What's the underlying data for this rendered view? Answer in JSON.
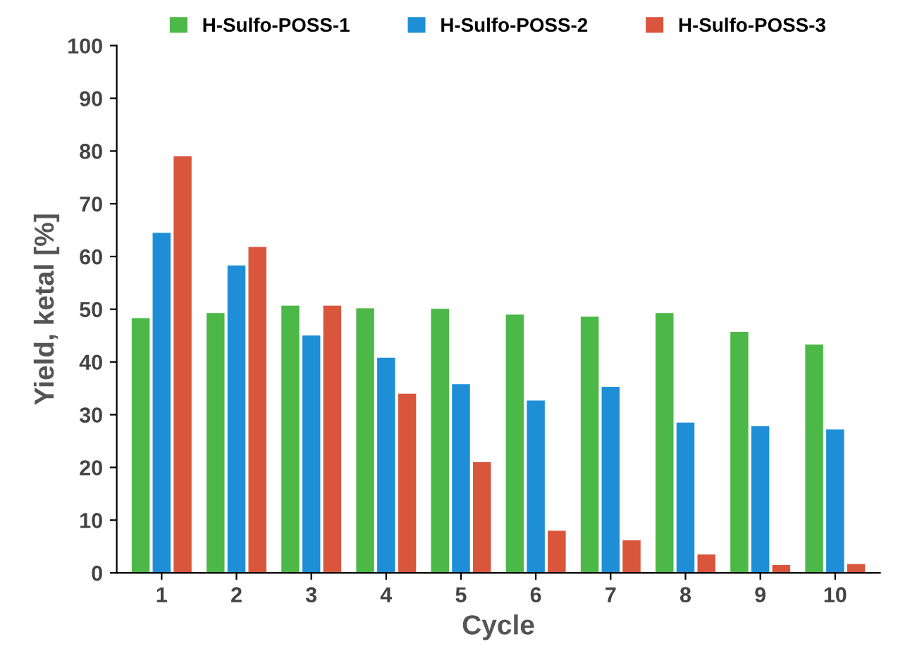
{
  "chart_data": {
    "type": "bar",
    "xlabel": "Cycle",
    "ylabel": "Yield, ketal [%]",
    "categories": [
      "1",
      "2",
      "3",
      "4",
      "5",
      "6",
      "7",
      "8",
      "9",
      "10"
    ],
    "series": [
      {
        "name": "H-Sulfo-POSS-1",
        "color": "#4cb848",
        "values": [
          48.3,
          49.3,
          50.7,
          50.2,
          50.1,
          49,
          48.6,
          49.3,
          45.7,
          43.3
        ]
      },
      {
        "name": "H-Sulfo-POSS-2",
        "color": "#1e8fd6",
        "values": [
          64.5,
          58.3,
          45,
          40.8,
          35.8,
          32.7,
          35.3,
          28.5,
          27.8,
          27.2
        ]
      },
      {
        "name": "H-Sulfo-POSS-3",
        "color": "#d9553c",
        "values": [
          79,
          61.8,
          50.7,
          34,
          21,
          8,
          6.2,
          3.5,
          1.5,
          1.7
        ]
      }
    ],
    "ylim": [
      0,
      100
    ],
    "yticks": [
      0,
      10,
      20,
      30,
      40,
      50,
      60,
      70,
      80,
      90,
      100
    ],
    "grid": false,
    "legend": "top"
  }
}
